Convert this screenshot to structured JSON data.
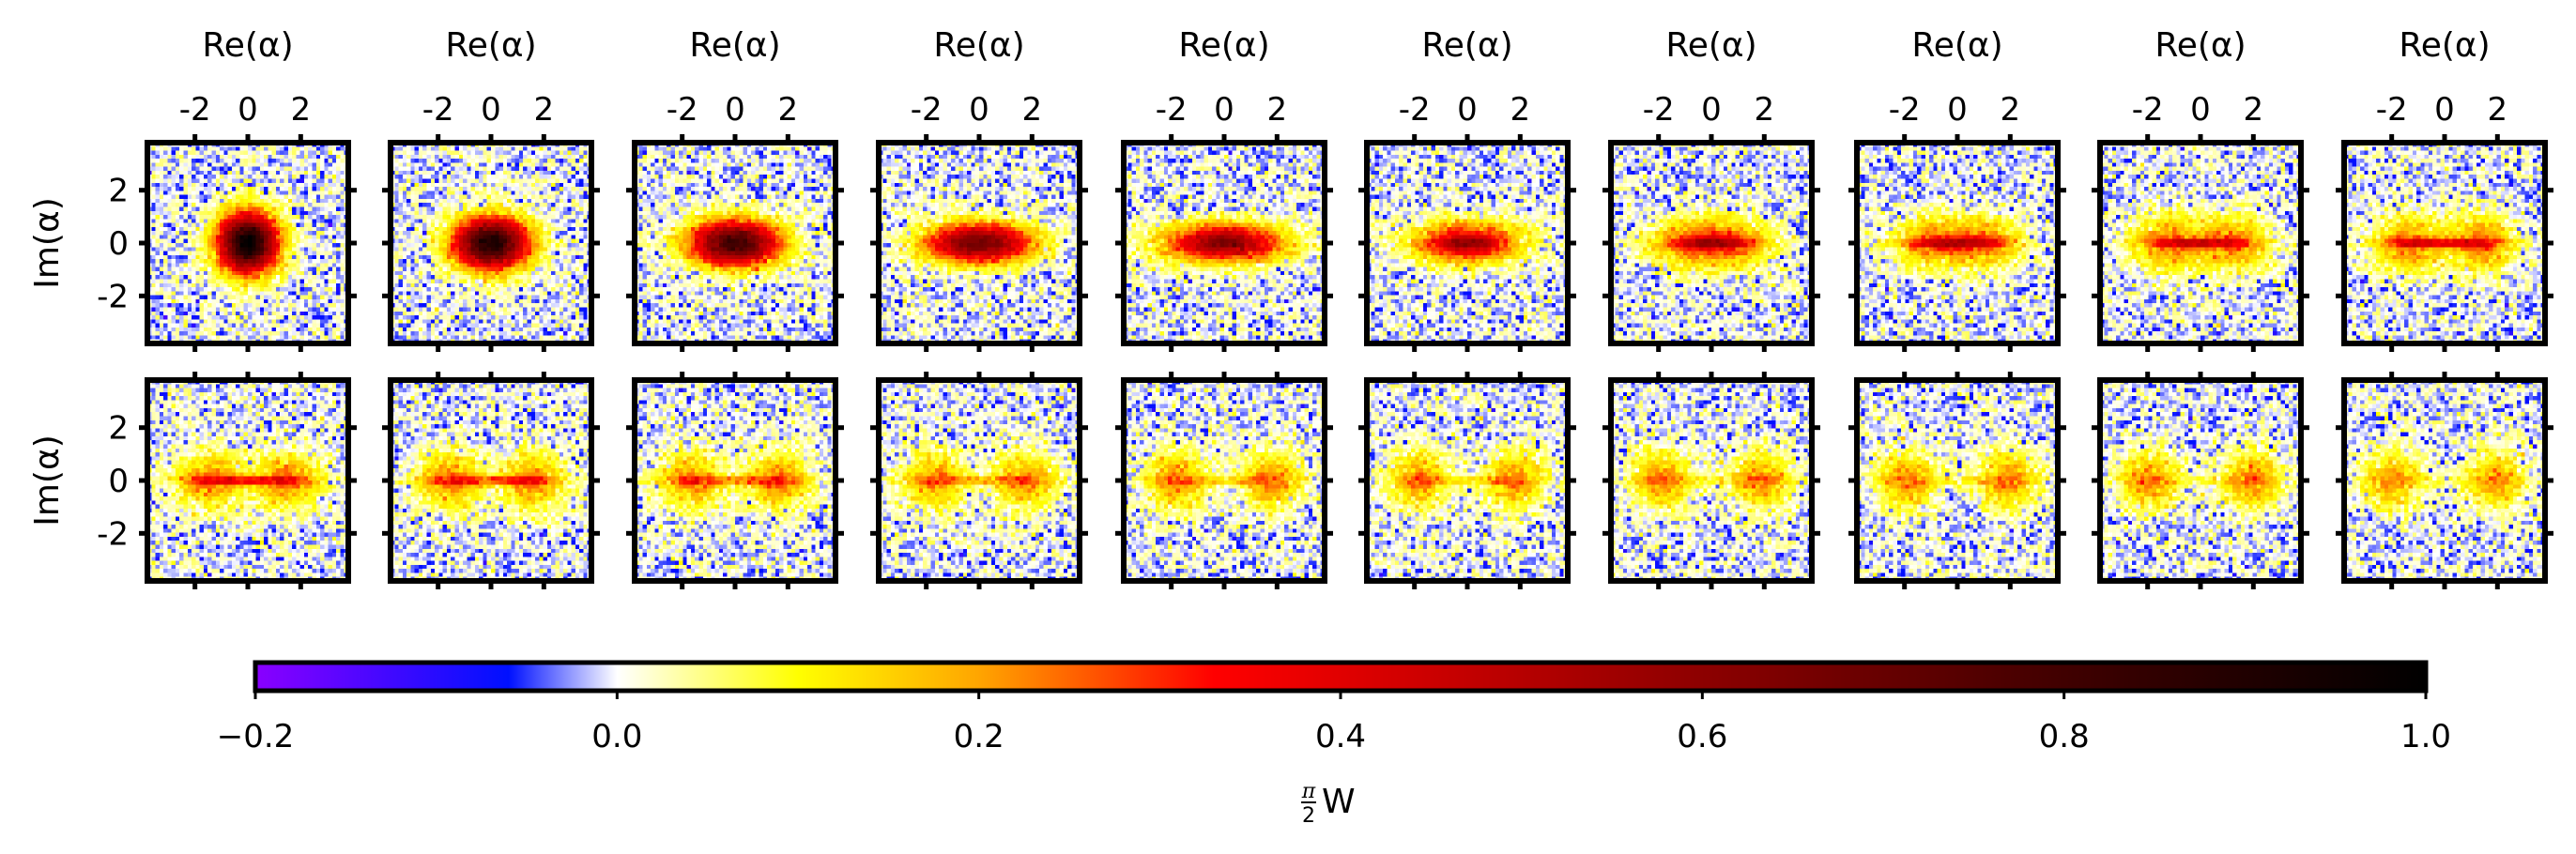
{
  "chart_data": {
    "type": "heatmap",
    "title": "",
    "description_of_grid": "",
    "rows": 2,
    "cols": 10,
    "xlabel": "Re(α)",
    "ylabel": "Im(α)",
    "x_ticks": [
      -2,
      0,
      2
    ],
    "x_tick_labels": [
      "-2",
      "0",
      "2"
    ],
    "y_ticks": [
      2,
      0,
      -2
    ],
    "y_tick_labels": [
      "2",
      "0",
      "-2"
    ],
    "xlim": [
      -3.8,
      3.8
    ],
    "ylim": [
      -3.8,
      3.8
    ],
    "panels": [
      {
        "row": 0,
        "col": 0,
        "lobe_x": 0.0,
        "lobe_w": 0.75,
        "lobe_h": 0.75,
        "peak": 1.0,
        "bridge": 0.0
      },
      {
        "row": 0,
        "col": 1,
        "lobe_x": 0.0,
        "lobe_w": 0.95,
        "lobe_h": 0.65,
        "peak": 0.92,
        "bridge": 0.0
      },
      {
        "row": 0,
        "col": 2,
        "lobe_x": 0.0,
        "lobe_w": 1.15,
        "lobe_h": 0.58,
        "peak": 0.8,
        "bridge": 0.0
      },
      {
        "row": 0,
        "col": 3,
        "lobe_x": 0.0,
        "lobe_w": 1.35,
        "lobe_h": 0.5,
        "peak": 0.68,
        "bridge": 0.0
      },
      {
        "row": 0,
        "col": 4,
        "lobe_x": 0.2,
        "lobe_w": 1.5,
        "lobe_h": 0.48,
        "peak": 0.58,
        "bridge": 0.1
      },
      {
        "row": 0,
        "col": 5,
        "lobe_x": 0.5,
        "lobe_w": 1.25,
        "lobe_h": 0.52,
        "peak": 0.45,
        "bridge": 0.2
      },
      {
        "row": 0,
        "col": 6,
        "lobe_x": 0.8,
        "lobe_w": 1.05,
        "lobe_h": 0.6,
        "peak": 0.36,
        "bridge": 0.28
      },
      {
        "row": 0,
        "col": 7,
        "lobe_x": 1.0,
        "lobe_w": 0.95,
        "lobe_h": 0.65,
        "peak": 0.3,
        "bridge": 0.3
      },
      {
        "row": 0,
        "col": 8,
        "lobe_x": 1.2,
        "lobe_w": 0.9,
        "lobe_h": 0.7,
        "peak": 0.27,
        "bridge": 0.3
      },
      {
        "row": 0,
        "col": 9,
        "lobe_x": 1.35,
        "lobe_w": 0.85,
        "lobe_h": 0.72,
        "peak": 0.25,
        "bridge": 0.28
      },
      {
        "row": 1,
        "col": 0,
        "lobe_x": 1.45,
        "lobe_w": 0.85,
        "lobe_h": 0.72,
        "peak": 0.24,
        "bridge": 0.26
      },
      {
        "row": 1,
        "col": 1,
        "lobe_x": 1.55,
        "lobe_w": 0.82,
        "lobe_h": 0.72,
        "peak": 0.23,
        "bridge": 0.22
      },
      {
        "row": 1,
        "col": 2,
        "lobe_x": 1.65,
        "lobe_w": 0.8,
        "lobe_h": 0.72,
        "peak": 0.23,
        "bridge": 0.18
      },
      {
        "row": 1,
        "col": 3,
        "lobe_x": 1.72,
        "lobe_w": 0.78,
        "lobe_h": 0.72,
        "peak": 0.22,
        "bridge": 0.15
      },
      {
        "row": 1,
        "col": 4,
        "lobe_x": 1.78,
        "lobe_w": 0.76,
        "lobe_h": 0.72,
        "peak": 0.22,
        "bridge": 0.12
      },
      {
        "row": 1,
        "col": 5,
        "lobe_x": 1.82,
        "lobe_w": 0.75,
        "lobe_h": 0.72,
        "peak": 0.22,
        "bridge": 0.1
      },
      {
        "row": 1,
        "col": 6,
        "lobe_x": 1.86,
        "lobe_w": 0.74,
        "lobe_h": 0.72,
        "peak": 0.22,
        "bridge": 0.08
      },
      {
        "row": 1,
        "col": 7,
        "lobe_x": 1.9,
        "lobe_w": 0.74,
        "lobe_h": 0.72,
        "peak": 0.22,
        "bridge": 0.07
      },
      {
        "row": 1,
        "col": 8,
        "lobe_x": 1.92,
        "lobe_w": 0.74,
        "lobe_h": 0.72,
        "peak": 0.22,
        "bridge": 0.06
      },
      {
        "row": 1,
        "col": 9,
        "lobe_x": 1.95,
        "lobe_w": 0.74,
        "lobe_h": 0.72,
        "peak": 0.2,
        "bridge": 0.05
      }
    ],
    "colorbar": {
      "label": "π/2 W",
      "label_num": "π",
      "label_den": "2",
      "label_var": "W",
      "range": [
        -0.2,
        1.0
      ],
      "ticks": [
        -0.2,
        0.0,
        0.2,
        0.4,
        0.6,
        0.8,
        1.0
      ],
      "tick_labels": [
        "−0.2",
        "0.0",
        "0.2",
        "0.4",
        "0.6",
        "0.8",
        "1.0"
      ],
      "stops": [
        {
          "v": -0.2,
          "color": "#8a00ff"
        },
        {
          "v": -0.06,
          "color": "#0010ff"
        },
        {
          "v": 0.0,
          "color": "#ffffff"
        },
        {
          "v": 0.1,
          "color": "#ffff00"
        },
        {
          "v": 0.2,
          "color": "#ffa500"
        },
        {
          "v": 0.33,
          "color": "#ff0000"
        },
        {
          "v": 0.55,
          "color": "#a00000"
        },
        {
          "v": 0.8,
          "color": "#400000"
        },
        {
          "v": 1.0,
          "color": "#000000"
        }
      ]
    }
  }
}
